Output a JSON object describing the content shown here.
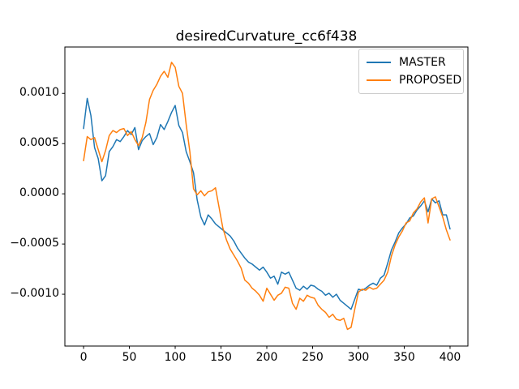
{
  "title": "desiredCurvature_cc6f438",
  "legend": {
    "items": [
      {
        "label": "MASTER",
        "color": "#1f77b4"
      },
      {
        "label": "PROPOSED",
        "color": "#ff7f0e"
      }
    ]
  },
  "chart_data": {
    "type": "line",
    "title": "desiredCurvature_cc6f438",
    "xlabel": "",
    "ylabel": "",
    "grid": false,
    "legend_position": "upper right",
    "xlim": [
      -20.4,
      419.5
    ],
    "ylim": [
      -0.001516,
      0.001462
    ],
    "x_tick_values": [
      0,
      50,
      100,
      150,
      200,
      250,
      300,
      350,
      400
    ],
    "x_tick_labels": [
      "0",
      "50",
      "100",
      "150",
      "200",
      "250",
      "300",
      "350",
      "400"
    ],
    "y_tick_values": [
      -0.001,
      -0.0005,
      0.0,
      0.0005,
      0.001
    ],
    "y_tick_labels": [
      "−0.0010",
      "−0.0005",
      "0.0000",
      "0.0005",
      "0.0010"
    ],
    "x": [
      0,
      4,
      8,
      12,
      16,
      20,
      24,
      28,
      32,
      36,
      40,
      44,
      48,
      52,
      56,
      60,
      64,
      68,
      72,
      76,
      80,
      84,
      88,
      92,
      96,
      100,
      104,
      108,
      112,
      116,
      120,
      124,
      128,
      132,
      136,
      140,
      144,
      148,
      152,
      156,
      160,
      164,
      168,
      172,
      176,
      180,
      184,
      188,
      192,
      196,
      200,
      204,
      208,
      212,
      216,
      220,
      224,
      228,
      232,
      236,
      240,
      244,
      248,
      252,
      256,
      260,
      264,
      268,
      272,
      276,
      280,
      284,
      288,
      292,
      296,
      300,
      304,
      308,
      312,
      316,
      320,
      324,
      328,
      332,
      336,
      340,
      344,
      348,
      352,
      356,
      360,
      364,
      368,
      372,
      376,
      380,
      384,
      388,
      392,
      396,
      400
    ],
    "series": [
      {
        "name": "MASTER",
        "color": "#1f77b4",
        "values": [
          0.00065,
          0.00095,
          0.00078,
          0.00046,
          0.00035,
          0.00013,
          0.00018,
          0.00042,
          0.00047,
          0.00054,
          0.00052,
          0.00057,
          0.00063,
          0.00059,
          0.00066,
          0.00044,
          0.00053,
          0.00057,
          0.0006,
          0.00049,
          0.00056,
          0.00069,
          0.00064,
          0.00072,
          0.00081,
          0.00088,
          0.00068,
          0.00061,
          0.00042,
          0.00032,
          0.00021,
          -6e-05,
          -0.00023,
          -0.00031,
          -0.00021,
          -0.00025,
          -0.0003,
          -0.00033,
          -0.00036,
          -0.00039,
          -0.00042,
          -0.00047,
          -0.00054,
          -0.00059,
          -0.00064,
          -0.00068,
          -0.0007,
          -0.00073,
          -0.00076,
          -0.00073,
          -0.00078,
          -0.00084,
          -0.00082,
          -0.0009,
          -0.00078,
          -0.0008,
          -0.00078,
          -0.00086,
          -0.00094,
          -0.00096,
          -0.00092,
          -0.00095,
          -0.00091,
          -0.00092,
          -0.00095,
          -0.00097,
          -0.00101,
          -0.00099,
          -0.00103,
          -0.001,
          -0.00106,
          -0.00109,
          -0.00112,
          -0.00115,
          -0.00105,
          -0.00095,
          -0.00096,
          -0.00094,
          -0.00091,
          -0.00089,
          -0.00091,
          -0.00084,
          -0.00081,
          -0.00069,
          -0.00056,
          -0.00048,
          -0.00039,
          -0.00034,
          -0.0003,
          -0.00024,
          -0.00022,
          -0.00016,
          -0.00012,
          -7e-05,
          -0.00018,
          -5e-05,
          -9e-05,
          -7e-05,
          -0.00021,
          -0.00021,
          -0.00035
        ]
      },
      {
        "name": "PROPOSED",
        "color": "#ff7f0e",
        "values": [
          0.00033,
          0.00057,
          0.00054,
          0.00056,
          0.00044,
          0.00032,
          0.00043,
          0.00058,
          0.00063,
          0.00061,
          0.00064,
          0.00065,
          0.00058,
          0.00062,
          0.00054,
          0.00048,
          0.00056,
          0.00071,
          0.00094,
          0.00103,
          0.00109,
          0.00117,
          0.00122,
          0.00116,
          0.00131,
          0.00126,
          0.00107,
          0.001,
          0.00069,
          0.00042,
          5e-05,
          -1e-05,
          3e-05,
          -2e-05,
          2e-05,
          3e-05,
          6e-05,
          -0.00014,
          -0.00034,
          -0.00046,
          -0.00055,
          -0.00061,
          -0.00067,
          -0.00074,
          -0.00086,
          -0.00089,
          -0.00094,
          -0.00097,
          -0.00101,
          -0.00107,
          -0.00094,
          -0.001,
          -0.00106,
          -0.00101,
          -0.00099,
          -0.00093,
          -0.00094,
          -0.00109,
          -0.00115,
          -0.00104,
          -0.00107,
          -0.00101,
          -0.00103,
          -0.00104,
          -0.00111,
          -0.00115,
          -0.00118,
          -0.00123,
          -0.0012,
          -0.00125,
          -0.00126,
          -0.00124,
          -0.00135,
          -0.00133,
          -0.00115,
          -0.00098,
          -0.00095,
          -0.00096,
          -0.00093,
          -0.00095,
          -0.00094,
          -0.0009,
          -0.00086,
          -0.00078,
          -0.00062,
          -0.00051,
          -0.00043,
          -0.00037,
          -0.00029,
          -0.00027,
          -0.00019,
          -0.00015,
          -8e-05,
          -4e-05,
          -0.00029,
          -5e-05,
          -3e-05,
          -0.00013,
          -0.00023,
          -0.00036,
          -0.00046
        ]
      }
    ]
  }
}
